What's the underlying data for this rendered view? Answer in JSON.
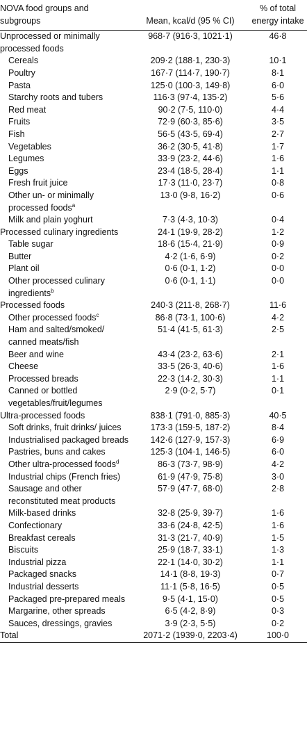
{
  "table": {
    "header": [
      "NOVA food groups and subgroups",
      "Mean, kcal/d (95 % CI)",
      "% of total energy intake"
    ],
    "groups": [
      {
        "name": "Unprocessed or minimally processed foods",
        "mean": "968·7 (916·3, 1021·1)",
        "pct": "46·8",
        "items": [
          {
            "name": "Cereals",
            "mean": "209·2 (188·1, 230·3)",
            "pct": "10·1"
          },
          {
            "name": "Poultry",
            "mean": "167·7 (114·7, 190·7)",
            "pct": "8·1"
          },
          {
            "name": "Pasta",
            "mean": "125·0 (100·3, 149·8)",
            "pct": "6·0"
          },
          {
            "name": "Starchy roots and tubers",
            "mean": "116·3 (97·4, 135·2)",
            "pct": "5·6"
          },
          {
            "name": "Red meat",
            "mean": "90·2 (7·5, 110·0)",
            "pct": "4·4"
          },
          {
            "name": "Fruits",
            "mean": "72·9 (60·3, 85·6)",
            "pct": "3·5"
          },
          {
            "name": "Fish",
            "mean": "56·5 (43·5, 69·4)",
            "pct": "2·7"
          },
          {
            "name": "Vegetables",
            "mean": "36·2 (30·5, 41·8)",
            "pct": "1·7"
          },
          {
            "name": "Legumes",
            "mean": "33·9 (23·2, 44·6)",
            "pct": "1·6"
          },
          {
            "name": "Eggs",
            "mean": "23·4 (18·5, 28·4)",
            "pct": "1·1"
          },
          {
            "name": "Fresh fruit juice",
            "mean": "17·3 (11·0, 23·7)",
            "pct": "0·8"
          },
          {
            "name": "Other un- or minimally processed foods",
            "note": "a",
            "mean": "13·0 (9·8, 16·2)",
            "pct": "0·6"
          },
          {
            "name": "Milk and plain yoghurt",
            "mean": "7·3 (4·3, 10·3)",
            "pct": "0·4"
          }
        ]
      },
      {
        "name": "Processed culinary ingredients",
        "mean": "24·1 (19·9, 28·2)",
        "pct": "1·2",
        "items": [
          {
            "name": "Table sugar",
            "mean": "18·6 (15·4, 21·9)",
            "pct": "0·9"
          },
          {
            "name": "Butter",
            "mean": "4·2 (1·6, 6·9)",
            "pct": "0·2"
          },
          {
            "name": "Plant oil",
            "mean": "0·6 (0·1, 1·2)",
            "pct": "0·0"
          },
          {
            "name": "Other processed culinary ingredients",
            "note": "b",
            "mean": "0·6 (0·1, 1·1)",
            "pct": "0·0"
          }
        ]
      },
      {
        "name": "Processed foods",
        "mean": "240·3 (211·8, 268·7)",
        "pct": "11·6",
        "items": [
          {
            "name": "Other processed foods",
            "note": "c",
            "mean": "86·8 (73·1, 100·6)",
            "pct": "4·2"
          },
          {
            "name": "Ham and salted/smoked/ canned meats/fish",
            "mean": "51·4 (41·5, 61·3)",
            "pct": "2·5"
          },
          {
            "name": "Beer and wine",
            "mean": "43·4 (23·2, 63·6)",
            "pct": "2·1"
          },
          {
            "name": "Cheese",
            "mean": "33·5 (26·3, 40·6)",
            "pct": "1·6"
          },
          {
            "name": "Processed breads",
            "mean": "22·3 (14·2, 30·3)",
            "pct": "1·1"
          },
          {
            "name": "Canned or bottled vegetables/fruit/legumes",
            "mean": "2·9 (0·2, 5·7)",
            "pct": "0·1"
          }
        ]
      },
      {
        "name": "Ultra-processed foods",
        "mean": "838·1 (791·0, 885·3)",
        "pct": "40·5",
        "items": [
          {
            "name": "Soft drinks, fruit drinks/ juices",
            "mean": "173·3 (159·5, 187·2)",
            "pct": "8·4"
          },
          {
            "name": "Industrialised packaged breads",
            "mean": "142·6 (127·9, 157·3)",
            "pct": "6·9"
          },
          {
            "name": "Pastries, buns and cakes",
            "mean": "125·3 (104·1, 146·5)",
            "pct": "6·0"
          },
          {
            "name": "Other ultra-processed foods",
            "note": "d",
            "mean": "86·3 (73·7, 98·9)",
            "pct": "4·2"
          },
          {
            "name": "Industrial chips (French fries)",
            "mean": "61·9 (47·9, 75·8)",
            "pct": "3·0"
          },
          {
            "name": "Sausage and other reconstituted meat products",
            "mean": "57·9 (47·7, 68·0)",
            "pct": "2·8"
          },
          {
            "name": "Milk-based drinks",
            "mean": "32·8 (25·9, 39·7)",
            "pct": "1·6"
          },
          {
            "name": "Confectionary",
            "mean": "33·6 (24·8, 42·5)",
            "pct": "1·6"
          },
          {
            "name": "Breakfast cereals",
            "mean": "31·3 (21·7, 40·9)",
            "pct": "1·5"
          },
          {
            "name": "Biscuits",
            "mean": "25·9 (18·7, 33·1)",
            "pct": "1·3"
          },
          {
            "name": "Industrial pizza",
            "mean": "22·1 (14·0, 30·2)",
            "pct": "1·1"
          },
          {
            "name": "Packaged snacks",
            "mean": "14·1 (8·8, 19·3)",
            "pct": "0·7"
          },
          {
            "name": "Industrial desserts",
            "mean": "11·1 (5·8, 16·5)",
            "pct": "0·5"
          },
          {
            "name": "Packaged pre-prepared meals",
            "mean": "9·5 (4·1, 15·0)",
            "pct": "0·5"
          },
          {
            "name": "Margarine, other spreads",
            "mean": "6·5 (4·2, 8·9)",
            "pct": "0·3"
          },
          {
            "name": "Sauces, dressings, gravies",
            "mean": "3·9 (2·3, 5·5)",
            "pct": "0·2"
          }
        ]
      }
    ],
    "total": {
      "name": "Total",
      "mean": "2071·2 (1939·0, 2203·4)",
      "pct": "100·0"
    }
  }
}
